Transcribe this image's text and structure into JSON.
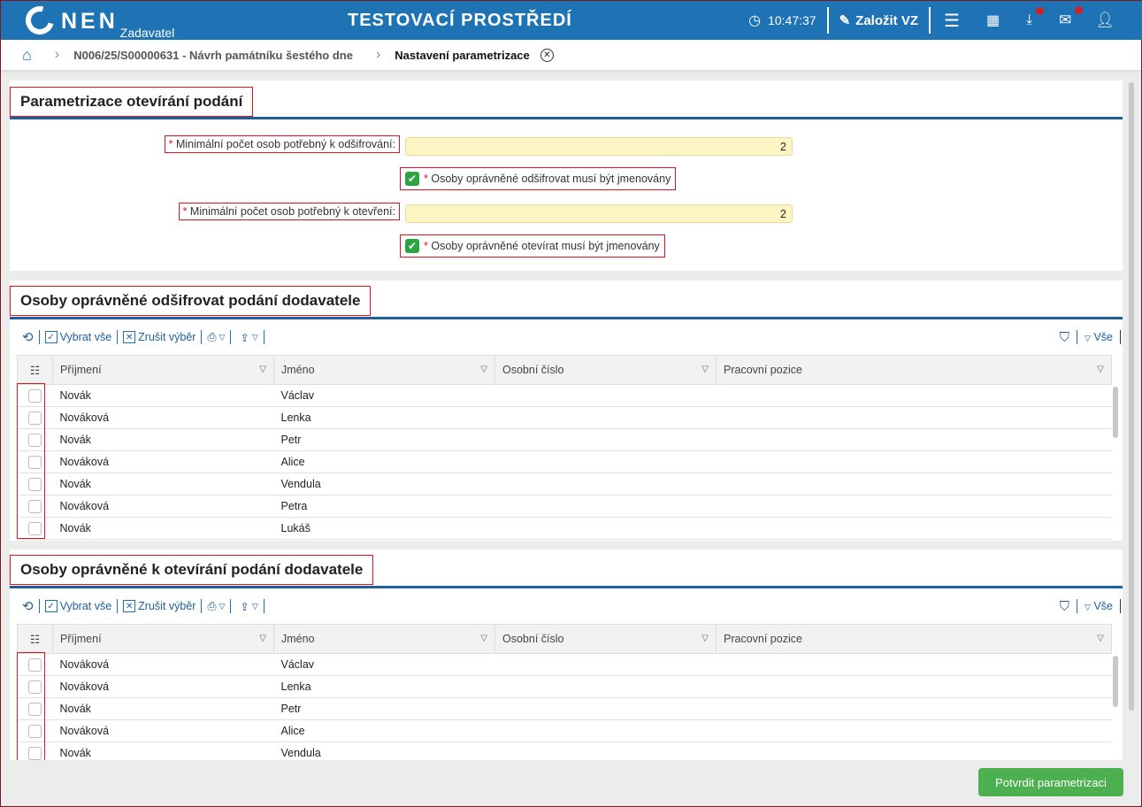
{
  "header": {
    "logo": "NEN",
    "logo_sub": "Zadavatel",
    "env": "TESTOVACÍ PROSTŘEDÍ",
    "time": "10:47:37",
    "create_label": "Založit VZ"
  },
  "breadcrumb": {
    "item1": "N006/25/S00000631 - Návrh památníku šestého dne",
    "current": "Nastavení parametrizace"
  },
  "params": {
    "title": "Parametrizace otevírání podání",
    "decrypt_label": "Minimální počet osob potřebný k odšifrování:",
    "decrypt_value": "2",
    "decrypt_named": "Osoby oprávněné odšifrovat musí být jmenovány",
    "decrypt_named_checked": true,
    "open_label": "Minimální počet osob potřebný k otevření:",
    "open_value": "2",
    "open_named": "Osoby oprávněné otevírat musí být jmenovány",
    "open_named_checked": true
  },
  "toolbar": {
    "select_all": "Vybrat vše",
    "clear": "Zrušit výběr",
    "all": "Vše"
  },
  "columns": [
    "Příjmení",
    "Jméno",
    "Osobní číslo",
    "Pracovní pozice"
  ],
  "decryptors": {
    "title": "Osoby oprávněné odšifrovat podání dodavatele",
    "rows": [
      [
        "Novák",
        "Václav"
      ],
      [
        "Nováková",
        "Lenka"
      ],
      [
        "Novák",
        "Petr"
      ],
      [
        "Nováková",
        "Alice"
      ],
      [
        "Novák",
        "Vendula"
      ],
      [
        "Nováková",
        "Petra"
      ],
      [
        "Novák",
        "Lukáš"
      ]
    ]
  },
  "openers": {
    "title": "Osoby oprávněné k otevírání podání dodavatele",
    "rows": [
      [
        "Nováková",
        "Václav"
      ],
      [
        "Nováková",
        "Lenka"
      ],
      [
        "Novák",
        "Petr"
      ],
      [
        "Nováková",
        "Alice"
      ],
      [
        "Novák",
        "Vendula"
      ]
    ]
  },
  "confirm_label": "Potvrdit parametrizaci"
}
